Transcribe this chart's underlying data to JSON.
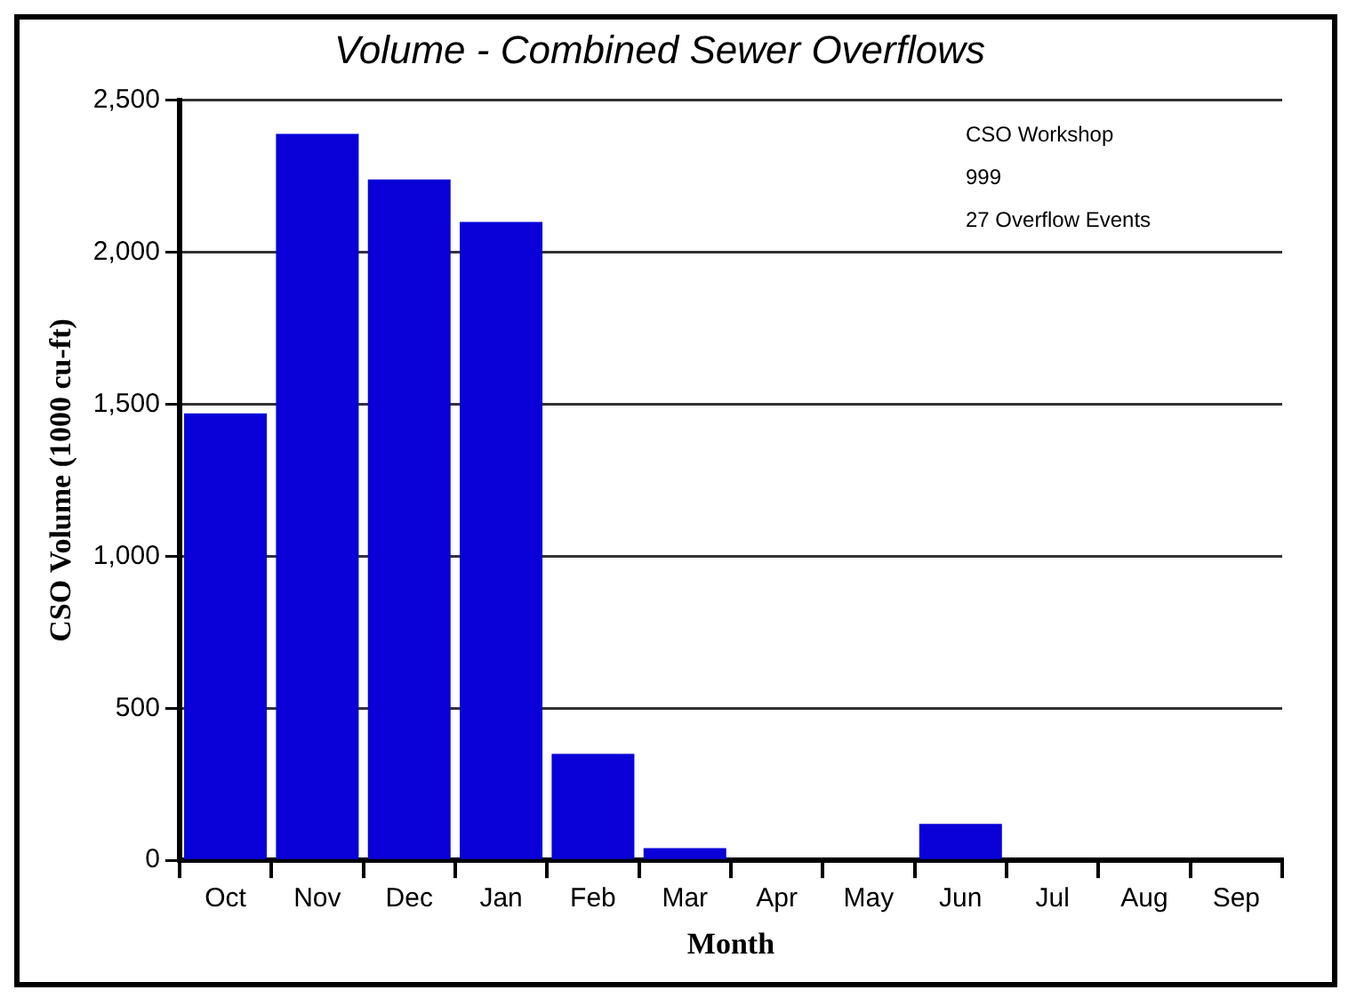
{
  "chart_data": {
    "type": "bar",
    "title": "Volume - Combined Sewer Overflows",
    "xlabel": "Month",
    "ylabel": "CSO Volume (1000 cu-ft)",
    "categories": [
      "Oct",
      "Nov",
      "Dec",
      "Jan",
      "Feb",
      "Mar",
      "Apr",
      "May",
      "Jun",
      "Jul",
      "Aug",
      "Sep"
    ],
    "values": [
      1470,
      2390,
      2240,
      2100,
      350,
      40,
      0,
      0,
      120,
      0,
      0,
      0
    ],
    "color": "#0a00d8",
    "ylim": [
      0,
      2500
    ],
    "yticks": [
      0,
      500,
      {
        "value": 1000,
        "label": "1,000"
      },
      {
        "value": 1500,
        "label": "1,500"
      },
      {
        "value": 2000,
        "label": "2,000"
      },
      {
        "value": 2500,
        "label": "2,500"
      }
    ],
    "grid": "y",
    "annotations": [
      "CSO Workshop",
      "999",
      "27 Overflow Events"
    ]
  }
}
